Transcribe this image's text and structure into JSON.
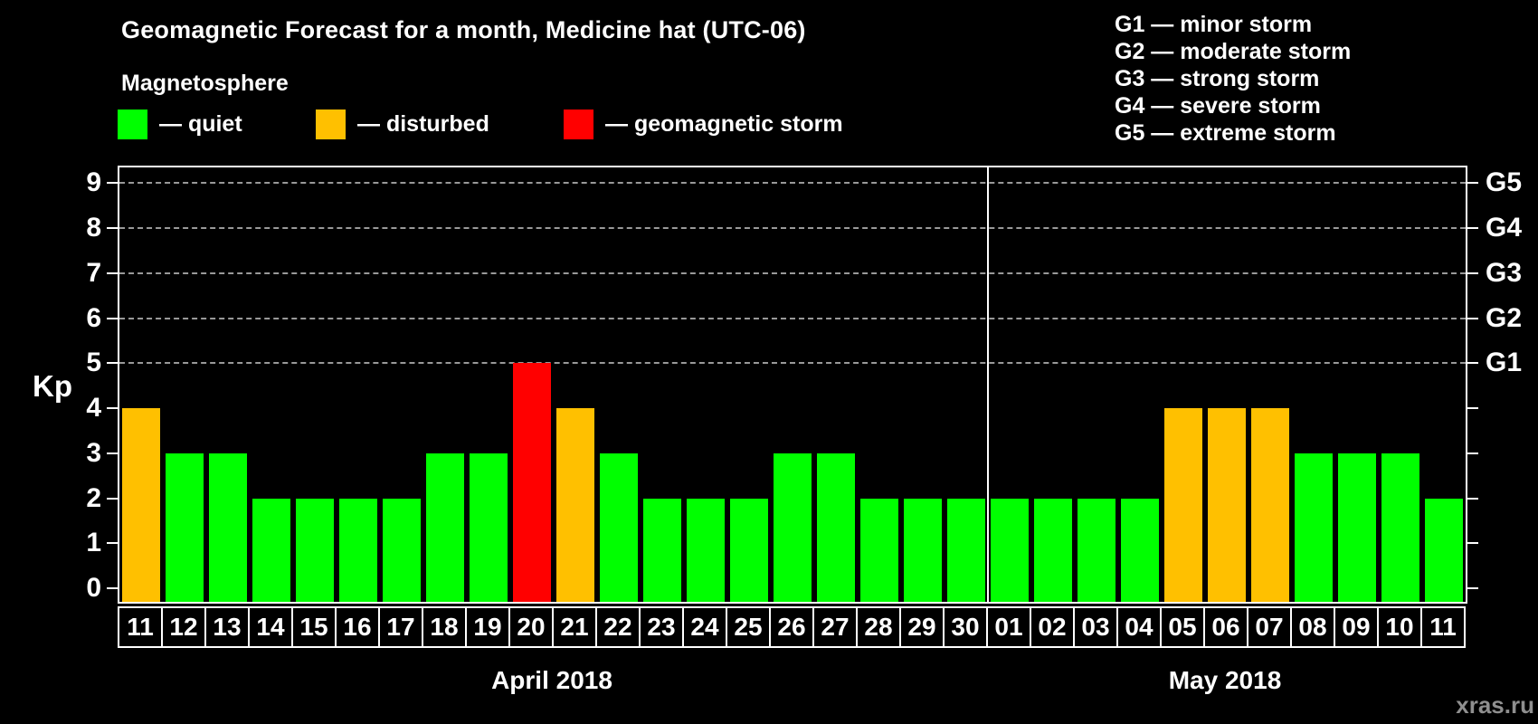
{
  "header": {
    "title": "Geomagnetic Forecast for a month, Medicine hat (UTC-06)",
    "subtitle": "Magnetosphere"
  },
  "legend": {
    "items": [
      {
        "key": "quiet",
        "label": "— quiet",
        "color": "#00FF00"
      },
      {
        "key": "disturbed",
        "label": "— disturbed",
        "color": "#FFC000"
      },
      {
        "key": "storm",
        "label": "— geomagnetic storm",
        "color": "#FF0000"
      }
    ]
  },
  "storm_scale_legend": [
    {
      "label": "G1 — minor storm"
    },
    {
      "label": "G2 — moderate storm"
    },
    {
      "label": "G3 — strong storm"
    },
    {
      "label": "G4 — severe storm"
    },
    {
      "label": "G5 — extreme storm"
    }
  ],
  "watermark": "xras.ru",
  "chart_data": {
    "type": "bar",
    "title": "Geomagnetic Forecast for a month, Medicine hat (UTC-06)",
    "ylabel": "Kp",
    "ylim": [
      0,
      9
    ],
    "y_ticks": [
      0,
      1,
      2,
      3,
      4,
      5,
      6,
      7,
      8,
      9
    ],
    "gridlines_at": [
      5,
      6,
      7,
      8,
      9
    ],
    "grid": "dashed-horizontal",
    "legend_position": "top",
    "right_axis_labels": [
      {
        "label": "G1",
        "kp": 5
      },
      {
        "label": "G2",
        "kp": 6
      },
      {
        "label": "G3",
        "kp": 7
      },
      {
        "label": "G4",
        "kp": 8
      },
      {
        "label": "G5",
        "kp": 9
      }
    ],
    "months": [
      {
        "label": "April 2018",
        "start_index": 0,
        "count": 20
      },
      {
        "label": "May 2018",
        "start_index": 20,
        "count": 11
      }
    ],
    "bars": [
      {
        "day": "11",
        "kp": 4,
        "state": "disturbed"
      },
      {
        "day": "12",
        "kp": 3,
        "state": "quiet"
      },
      {
        "day": "13",
        "kp": 3,
        "state": "quiet"
      },
      {
        "day": "14",
        "kp": 2,
        "state": "quiet"
      },
      {
        "day": "15",
        "kp": 2,
        "state": "quiet"
      },
      {
        "day": "16",
        "kp": 2,
        "state": "quiet"
      },
      {
        "day": "17",
        "kp": 2,
        "state": "quiet"
      },
      {
        "day": "18",
        "kp": 3,
        "state": "quiet"
      },
      {
        "day": "19",
        "kp": 3,
        "state": "quiet"
      },
      {
        "day": "20",
        "kp": 5,
        "state": "storm"
      },
      {
        "day": "21",
        "kp": 4,
        "state": "disturbed"
      },
      {
        "day": "22",
        "kp": 3,
        "state": "quiet"
      },
      {
        "day": "23",
        "kp": 2,
        "state": "quiet"
      },
      {
        "day": "24",
        "kp": 2,
        "state": "quiet"
      },
      {
        "day": "25",
        "kp": 2,
        "state": "quiet"
      },
      {
        "day": "26",
        "kp": 3,
        "state": "quiet"
      },
      {
        "day": "27",
        "kp": 3,
        "state": "quiet"
      },
      {
        "day": "28",
        "kp": 2,
        "state": "quiet"
      },
      {
        "day": "29",
        "kp": 2,
        "state": "quiet"
      },
      {
        "day": "30",
        "kp": 2,
        "state": "quiet"
      },
      {
        "day": "01",
        "kp": 2,
        "state": "quiet"
      },
      {
        "day": "02",
        "kp": 2,
        "state": "quiet"
      },
      {
        "day": "03",
        "kp": 2,
        "state": "quiet"
      },
      {
        "day": "04",
        "kp": 2,
        "state": "quiet"
      },
      {
        "day": "05",
        "kp": 4,
        "state": "disturbed"
      },
      {
        "day": "06",
        "kp": 4,
        "state": "disturbed"
      },
      {
        "day": "07",
        "kp": 4,
        "state": "disturbed"
      },
      {
        "day": "08",
        "kp": 3,
        "state": "quiet"
      },
      {
        "day": "09",
        "kp": 3,
        "state": "quiet"
      },
      {
        "day": "10",
        "kp": 3,
        "state": "quiet"
      },
      {
        "day": "11",
        "kp": 2,
        "state": "quiet"
      }
    ]
  }
}
